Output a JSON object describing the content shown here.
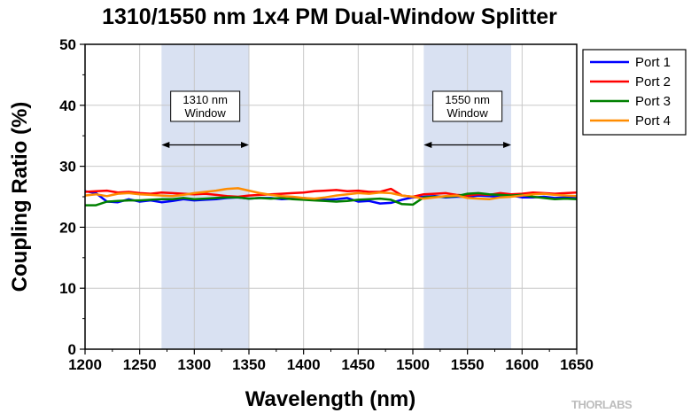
{
  "chart_data": {
    "type": "line",
    "title": "1310/1550 nm 1x4 PM Dual-Window Splitter",
    "xlabel": "Wavelength (nm)",
    "ylabel": "Coupling Ratio (%)",
    "xlim": [
      1200,
      1650
    ],
    "ylim": [
      0,
      50
    ],
    "xticks": [
      1200,
      1250,
      1300,
      1350,
      1400,
      1450,
      1500,
      1550,
      1600,
      1650
    ],
    "yticks": [
      0,
      10,
      20,
      30,
      40,
      50
    ],
    "grid": true,
    "legend_position": "top-right, outside plot",
    "x": [
      1200,
      1210,
      1220,
      1230,
      1240,
      1250,
      1260,
      1270,
      1280,
      1290,
      1300,
      1310,
      1320,
      1330,
      1340,
      1350,
      1360,
      1370,
      1380,
      1390,
      1400,
      1410,
      1420,
      1430,
      1440,
      1450,
      1460,
      1470,
      1480,
      1490,
      1500,
      1510,
      1520,
      1530,
      1540,
      1550,
      1560,
      1570,
      1580,
      1590,
      1600,
      1610,
      1620,
      1630,
      1640,
      1650
    ],
    "series": [
      {
        "name": "Port 1",
        "color": "#0000ff",
        "values": [
          25.9,
          25.6,
          24.2,
          24.1,
          24.6,
          24.2,
          24.4,
          24.1,
          24.3,
          24.6,
          24.4,
          24.5,
          24.6,
          24.8,
          24.9,
          24.7,
          24.8,
          24.8,
          24.6,
          24.7,
          24.8,
          24.6,
          24.5,
          24.6,
          24.8,
          24.2,
          24.3,
          23.9,
          24.0,
          24.5,
          24.9,
          25.0,
          25.1,
          24.9,
          25.0,
          25.0,
          25.2,
          25.1,
          25.0,
          25.2,
          24.9,
          24.9,
          25.0,
          24.8,
          24.9,
          24.8
        ]
      },
      {
        "name": "Port 2",
        "color": "#ff0000",
        "values": [
          25.8,
          25.9,
          26.0,
          25.7,
          25.8,
          25.6,
          25.5,
          25.7,
          25.6,
          25.5,
          25.4,
          25.5,
          25.3,
          25.1,
          25.0,
          25.2,
          25.3,
          25.4,
          25.5,
          25.6,
          25.7,
          25.9,
          26.0,
          26.1,
          25.9,
          26.0,
          25.8,
          25.8,
          26.3,
          25.2,
          25.0,
          25.4,
          25.5,
          25.6,
          25.3,
          25.2,
          25.4,
          25.3,
          25.6,
          25.4,
          25.5,
          25.7,
          25.6,
          25.5,
          25.6,
          25.7
        ]
      },
      {
        "name": "Port 3",
        "color": "#008000",
        "values": [
          23.6,
          23.6,
          24.2,
          24.3,
          24.4,
          24.4,
          24.5,
          24.6,
          24.6,
          24.8,
          24.6,
          24.7,
          24.8,
          24.9,
          24.9,
          24.7,
          24.8,
          24.7,
          24.8,
          24.6,
          24.5,
          24.4,
          24.3,
          24.2,
          24.3,
          24.5,
          24.6,
          24.7,
          24.5,
          23.8,
          23.7,
          24.9,
          25.0,
          25.0,
          25.1,
          25.5,
          25.6,
          25.4,
          25.3,
          25.2,
          25.3,
          25.0,
          24.8,
          24.6,
          24.7,
          24.6
        ]
      },
      {
        "name": "Port 4",
        "color": "#ff8c00",
        "values": [
          25.2,
          25.4,
          25.1,
          25.5,
          25.6,
          25.4,
          25.3,
          25.2,
          25.1,
          25.3,
          25.6,
          25.8,
          26.0,
          26.3,
          26.4,
          26.0,
          25.6,
          25.3,
          25.1,
          25.0,
          24.8,
          24.7,
          24.9,
          25.2,
          25.4,
          25.6,
          25.5,
          25.7,
          25.6,
          25.2,
          25.0,
          24.7,
          24.9,
          25.1,
          25.2,
          24.8,
          24.7,
          24.6,
          24.9,
          25.0,
          25.2,
          25.4,
          25.5,
          25.3,
          25.2,
          25.1
        ]
      }
    ],
    "annotations": [
      {
        "label_line1": "1310 nm",
        "label_line2": "Window",
        "range": [
          1270,
          1350
        ]
      },
      {
        "label_line1": "1550 nm",
        "label_line2": "Window",
        "range": [
          1510,
          1590
        ]
      }
    ],
    "band_color": "#d9e1f2",
    "watermark": "THORLABS"
  }
}
